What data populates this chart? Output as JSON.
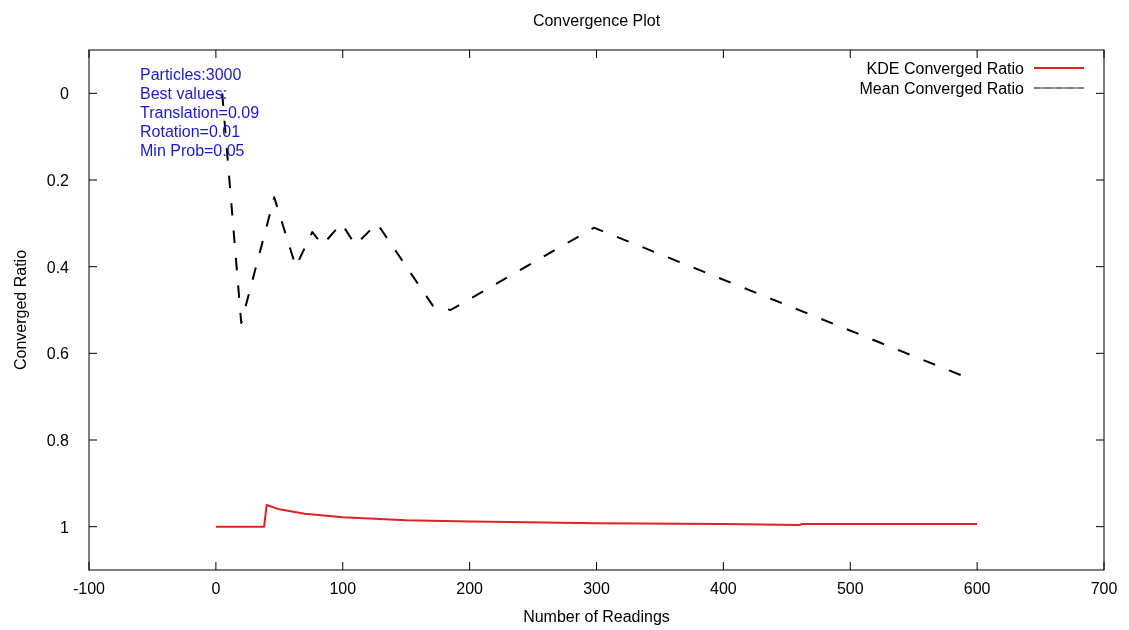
{
  "chart_data": {
    "type": "line",
    "title": "Convergence Plot",
    "xlabel": "Number of Readings",
    "ylabel": "Converged Ratio",
    "xlim": [
      -100,
      700
    ],
    "xticks": [
      -100,
      0,
      100,
      200,
      300,
      400,
      500,
      600,
      700
    ],
    "ylim": [
      1.1,
      -0.1
    ],
    "yticks": [
      0,
      0.2,
      0.4,
      0.6,
      0.8,
      1
    ],
    "legend": "top right",
    "annotations": [
      "Particles:3000",
      "Best values:",
      "Translation=0.09",
      "Rotation=0.01",
      "Min Prob=0.05"
    ],
    "series": [
      {
        "name": "KDE Converged Ratio",
        "color": "#dd2222",
        "line_style": "solid",
        "x": [
          0,
          38,
          40,
          50,
          70,
          100,
          150,
          200,
          300,
          400,
          460,
          462,
          600
        ],
        "values": [
          1,
          1,
          0.95,
          0.96,
          0.97,
          0.978,
          0.985,
          0.988,
          0.992,
          0.994,
          0.996,
          0.994,
          0.994
        ]
      },
      {
        "name": "Mean Converged Ratio",
        "color": "#000000",
        "line_style": "dashed",
        "x": [
          5,
          20,
          46,
          63,
          76,
          84,
          99,
          110,
          127,
          171,
          185,
          298,
          587
        ],
        "values": [
          0,
          0.53,
          0.24,
          0.4,
          0.32,
          0.35,
          0.3,
          0.35,
          0.3,
          0.49,
          0.5,
          0.31,
          0.65
        ]
      }
    ]
  }
}
